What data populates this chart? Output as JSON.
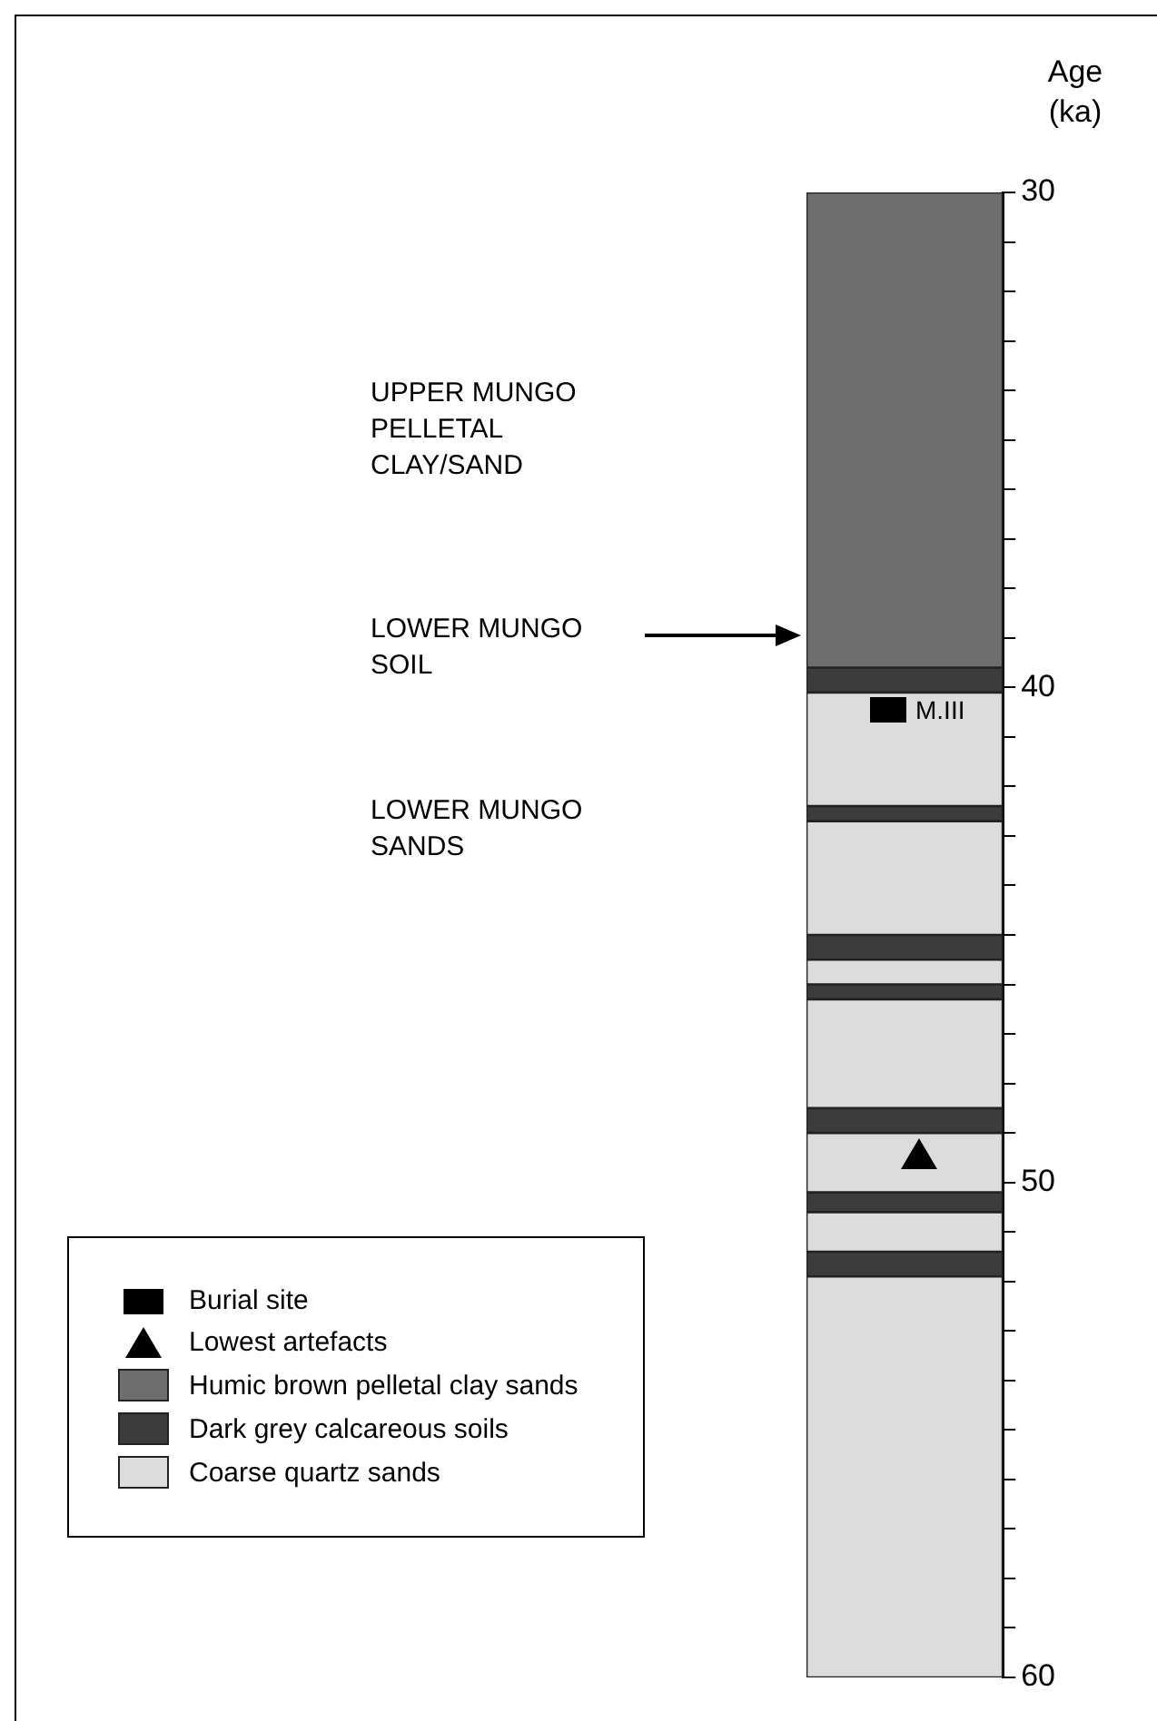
{
  "chart_data": {
    "type": "bar",
    "ylabel": "Age (ka)",
    "categories": [
      null
    ],
    "annotations": [
      "UPPER MUNGO PELLETAL CLAY/SAND",
      "LOWER MUNGO SOIL",
      "LOWER MUNGO SANDS",
      "M.III",
      "Burial site",
      "Lowest artefacts"
    ],
    "series": [
      {
        "name": "Humic brown pelletal clay sands",
        "color": "#6e6e6e",
        "values": [
          9.6
        ],
        "base": [
          30
        ]
      },
      {
        "name": "Dark grey calcareous soils",
        "color": "#3c3c3c",
        "values": [
          0.5
        ],
        "base": [
          39.6
        ]
      },
      {
        "name": "Coarse quartz sands",
        "color": "#dcdcdc",
        "values": [
          2.3
        ],
        "base": [
          40.1
        ]
      },
      {
        "color": "#3c3c3c",
        "values": [
          0.3
        ],
        "base": [
          42.4
        ]
      },
      {
        "color": "#dcdcdc",
        "values": [
          2.3
        ],
        "base": [
          42.7
        ]
      },
      {
        "color": "#3c3c3c",
        "values": [
          0.5
        ],
        "base": [
          45.0
        ]
      },
      {
        "color": "#dcdcdc",
        "values": [
          0.5
        ],
        "base": [
          45.5
        ]
      },
      {
        "color": "#3c3c3c",
        "values": [
          0.3
        ],
        "base": [
          46.0
        ]
      },
      {
        "color": "#dcdcdc",
        "values": [
          2.2
        ],
        "base": [
          46.3
        ]
      },
      {
        "color": "#3c3c3c",
        "values": [
          0.5
        ],
        "base": [
          48.5
        ]
      },
      {
        "color": "#dcdcdc",
        "values": [
          1.2
        ],
        "base": [
          49.0
        ]
      },
      {
        "color": "#3c3c3c",
        "values": [
          0.4
        ],
        "base": [
          50.2
        ]
      },
      {
        "color": "#dcdcdc",
        "values": [
          0.8
        ],
        "base": [
          50.6
        ]
      },
      {
        "color": "#3c3c3c",
        "values": [
          0.5
        ],
        "base": [
          51.4
        ]
      },
      {
        "color": "#dcdcdc",
        "values": [
          8.1
        ],
        "base": [
          51.9
        ]
      }
    ],
    "ylim": [
      60,
      30
    ],
    "yticks": [
      30,
      {
        "value": 31,
        "label": null
      },
      {
        "value": 32,
        "label": null
      },
      {
        "value": 33,
        "label": null
      },
      {
        "value": 34,
        "label": null
      },
      {
        "value": 35,
        "label": null
      },
      {
        "value": 36,
        "label": null
      },
      {
        "value": 37,
        "label": null
      },
      {
        "value": 38,
        "label": null
      },
      {
        "value": 39,
        "label": null
      },
      40,
      {
        "value": 41,
        "label": null
      },
      {
        "value": 42,
        "label": null
      },
      {
        "value": 43,
        "label": null
      },
      {
        "value": 44,
        "label": null
      },
      {
        "value": 45,
        "label": null
      },
      {
        "value": 46,
        "label": null
      },
      {
        "value": 47,
        "label": null
      },
      {
        "value": 48,
        "label": null
      },
      {
        "value": 49,
        "label": null
      },
      50,
      {
        "value": 51,
        "label": null
      },
      {
        "value": 52,
        "label": null
      },
      {
        "value": 53,
        "label": null
      },
      {
        "value": 54,
        "label": null
      },
      {
        "value": 55,
        "label": null
      },
      {
        "value": 56,
        "label": null
      },
      {
        "value": 57,
        "label": null
      },
      {
        "value": 58,
        "label": null
      },
      {
        "value": 59,
        "label": null
      },
      60
    ],
    "grid": false,
    "legend": "bottom left"
  }
}
